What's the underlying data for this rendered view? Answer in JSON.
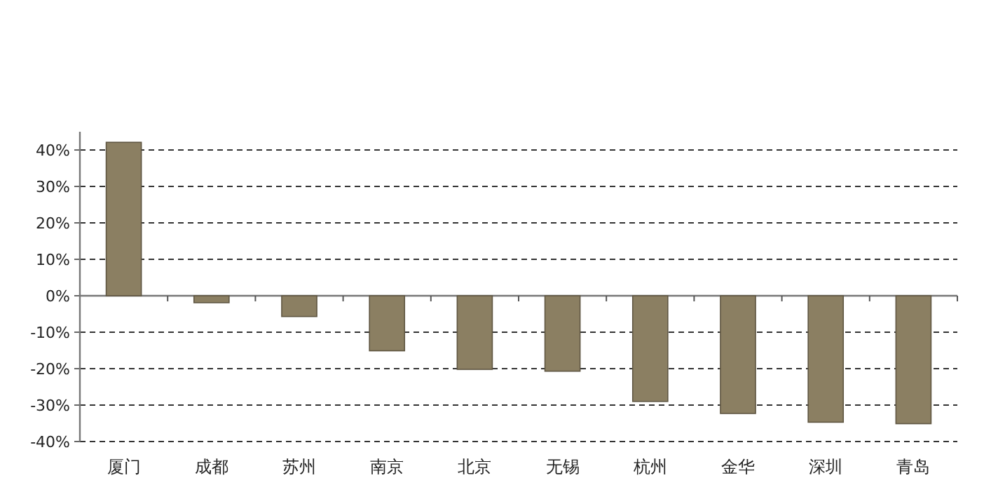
{
  "chart_data": {
    "type": "bar",
    "categories": [
      "厦门",
      "成都",
      "苏州",
      "南京",
      "北京",
      "无锡",
      "杭州",
      "金华",
      "深圳",
      "青岛"
    ],
    "values": [
      42.1,
      -1.9,
      -5.7,
      -15.1,
      -20.2,
      -20.7,
      -29.0,
      -32.3,
      -34.7,
      -35.1
    ],
    "color": "#8b7f62",
    "ylim": [
      -40,
      45
    ],
    "yticks": [
      {
        "value": -40,
        "label": "-40%"
      },
      {
        "value": -30,
        "label": "-30%"
      },
      {
        "value": -20,
        "label": "-20%"
      },
      {
        "value": -10,
        "label": "-10%"
      },
      {
        "value": 0,
        "label": "0%"
      },
      {
        "value": 10,
        "label": "10%"
      },
      {
        "value": 20,
        "label": "20%"
      },
      {
        "value": 30,
        "label": "30%"
      },
      {
        "value": 40,
        "label": "40%"
      }
    ],
    "grid": "y"
  }
}
